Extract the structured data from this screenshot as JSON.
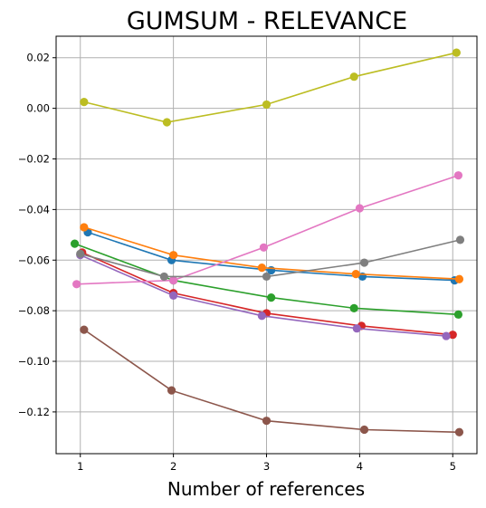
{
  "chart_data": {
    "type": "line",
    "title": "GUMSUM - RELEVANCE",
    "xlabel": "Number of references",
    "ylabel": "",
    "x_ticks": [
      1,
      2,
      3,
      4,
      5
    ],
    "x_tick_labels": [
      "1",
      "2",
      "3",
      "4",
      "5"
    ],
    "y_ticks": [
      -0.12,
      -0.1,
      -0.08,
      -0.06,
      -0.04,
      -0.02,
      0.0,
      0.02
    ],
    "y_tick_labels": [
      "−0.12",
      "−0.10",
      "−0.08",
      "−0.06",
      "−0.04",
      "−0.02",
      "0.00",
      "0.02"
    ],
    "xlim": [
      0.74,
      5.26
    ],
    "ylim": [
      -0.1365,
      0.0285
    ],
    "grid": true,
    "legend": "none",
    "series": [
      {
        "color": "#1f77b4",
        "points": [
          [
            1.08,
            -0.049
          ],
          [
            1.98,
            -0.06
          ],
          [
            3.05,
            -0.064
          ],
          [
            4.03,
            -0.0665
          ],
          [
            5.02,
            -0.068
          ]
        ]
      },
      {
        "color": "#ff7f0e",
        "points": [
          [
            1.04,
            -0.047
          ],
          [
            2.0,
            -0.058
          ],
          [
            2.95,
            -0.063
          ],
          [
            3.96,
            -0.0655
          ],
          [
            5.07,
            -0.0675
          ]
        ]
      },
      {
        "color": "#2ca02c",
        "points": [
          [
            0.94,
            -0.0535
          ],
          [
            2.0,
            -0.068
          ],
          [
            3.05,
            -0.0748
          ],
          [
            3.94,
            -0.079
          ],
          [
            5.06,
            -0.0815
          ]
        ]
      },
      {
        "color": "#d62728",
        "points": [
          [
            1.02,
            -0.057
          ],
          [
            2.0,
            -0.073
          ],
          [
            3.0,
            -0.081
          ],
          [
            4.02,
            -0.086
          ],
          [
            5.0,
            -0.0895
          ]
        ]
      },
      {
        "color": "#9467bd",
        "points": [
          [
            1.0,
            -0.058
          ],
          [
            2.0,
            -0.074
          ],
          [
            2.95,
            -0.082
          ],
          [
            3.97,
            -0.087
          ],
          [
            4.93,
            -0.09
          ]
        ]
      },
      {
        "color": "#8c564b",
        "points": [
          [
            1.04,
            -0.0875
          ],
          [
            1.98,
            -0.1115
          ],
          [
            3.0,
            -0.1235
          ],
          [
            4.05,
            -0.127
          ],
          [
            5.07,
            -0.128
          ]
        ]
      },
      {
        "color": "#e377c2",
        "points": [
          [
            0.96,
            -0.0695
          ],
          [
            2.0,
            -0.068
          ],
          [
            2.97,
            -0.055
          ],
          [
            4.0,
            -0.0395
          ],
          [
            5.06,
            -0.0265
          ]
        ]
      },
      {
        "color": "#7f7f7f",
        "points": [
          [
            1.0,
            -0.0575
          ],
          [
            1.9,
            -0.0665
          ],
          [
            3.0,
            -0.0665
          ],
          [
            4.05,
            -0.061
          ],
          [
            5.08,
            -0.052
          ]
        ]
      },
      {
        "color": "#bcbd22",
        "points": [
          [
            1.04,
            0.0025
          ],
          [
            1.93,
            -0.0055
          ],
          [
            3.0,
            0.0015
          ],
          [
            3.94,
            0.0125
          ],
          [
            5.04,
            0.022
          ]
        ]
      }
    ]
  }
}
